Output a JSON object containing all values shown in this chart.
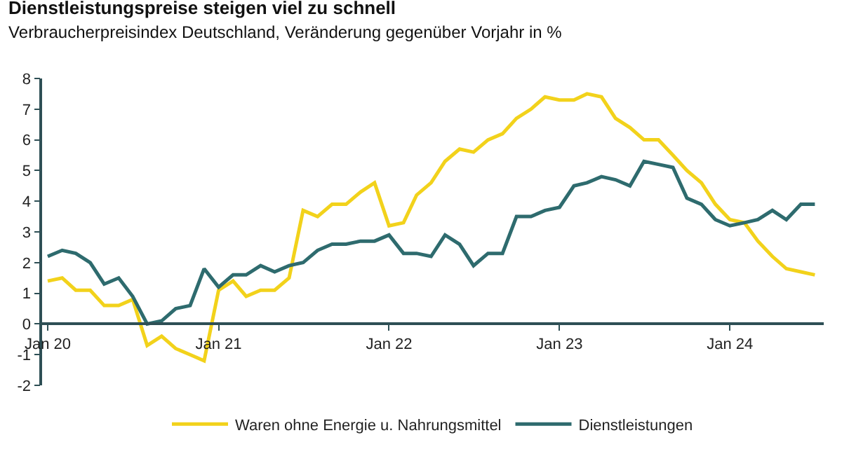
{
  "chart_data": {
    "type": "line",
    "title": "Dienstleistungspreise steigen viel zu schnell",
    "subtitle": "Verbraucherpreisindex Deutschland, Veränderung gegenüber Vorjahr in %",
    "x": [
      "2020-01",
      "2020-02",
      "2020-03",
      "2020-04",
      "2020-05",
      "2020-06",
      "2020-07",
      "2020-08",
      "2020-09",
      "2020-10",
      "2020-11",
      "2020-12",
      "2021-01",
      "2021-02",
      "2021-03",
      "2021-04",
      "2021-05",
      "2021-06",
      "2021-07",
      "2021-08",
      "2021-09",
      "2021-10",
      "2021-11",
      "2021-12",
      "2022-01",
      "2022-02",
      "2022-03",
      "2022-04",
      "2022-05",
      "2022-06",
      "2022-07",
      "2022-08",
      "2022-09",
      "2022-10",
      "2022-11",
      "2022-12",
      "2023-01",
      "2023-02",
      "2023-03",
      "2023-04",
      "2023-05",
      "2023-06",
      "2023-07",
      "2023-08",
      "2023-09",
      "2023-10",
      "2023-11",
      "2023-12",
      "2024-01",
      "2024-02",
      "2024-03",
      "2024-04",
      "2024-05",
      "2024-06",
      "2024-07"
    ],
    "series": [
      {
        "name": "Waren ohne Energie u. Nahrungsmittel",
        "color": "#f2d21b",
        "values": [
          1.4,
          1.5,
          1.1,
          1.1,
          0.6,
          0.6,
          0.8,
          -0.7,
          -0.4,
          -0.8,
          -1.0,
          -1.2,
          1.1,
          1.4,
          0.9,
          1.1,
          1.1,
          1.5,
          3.7,
          3.5,
          3.9,
          3.9,
          4.3,
          4.6,
          3.2,
          3.3,
          4.2,
          4.6,
          5.3,
          5.7,
          5.6,
          6.0,
          6.2,
          6.7,
          7.0,
          7.4,
          7.3,
          7.3,
          7.5,
          7.4,
          6.7,
          6.4,
          6.0,
          6.0,
          5.5,
          5.0,
          4.6,
          3.9,
          3.4,
          3.3,
          2.7,
          2.2,
          1.8,
          1.7,
          1.6
        ]
      },
      {
        "name": "Dienstleistungen",
        "color": "#2e6b6e",
        "values": [
          2.2,
          2.4,
          2.3,
          2.0,
          1.3,
          1.5,
          0.9,
          0.0,
          0.1,
          0.5,
          0.6,
          1.8,
          1.2,
          1.6,
          1.6,
          1.9,
          1.7,
          1.9,
          2.0,
          2.4,
          2.6,
          2.6,
          2.7,
          2.7,
          2.9,
          2.3,
          2.3,
          2.2,
          2.9,
          2.6,
          1.9,
          2.3,
          2.3,
          3.5,
          3.5,
          3.7,
          3.8,
          4.5,
          4.6,
          4.8,
          4.7,
          4.5,
          5.3,
          5.2,
          5.1,
          4.1,
          3.9,
          3.4,
          3.2,
          3.3,
          3.4,
          3.7,
          3.4,
          3.9,
          3.9
        ]
      }
    ],
    "xlim": [
      "2019-12-20",
      "2024-07-20"
    ],
    "xticks": [
      {
        "value": "2020-01",
        "label": "Jan 20"
      },
      {
        "value": "2021-01",
        "label": "Jan 21"
      },
      {
        "value": "2022-01",
        "label": "Jan 22"
      },
      {
        "value": "2023-01",
        "label": "Jan 23"
      },
      {
        "value": "2024-01",
        "label": "Jan 24"
      }
    ],
    "ylim": [
      -2,
      8
    ],
    "yticks": [
      -2,
      -1,
      0,
      1,
      2,
      3,
      4,
      5,
      6,
      7,
      8
    ],
    "legend": "bottom",
    "marker": "none",
    "line_style": "solid"
  }
}
